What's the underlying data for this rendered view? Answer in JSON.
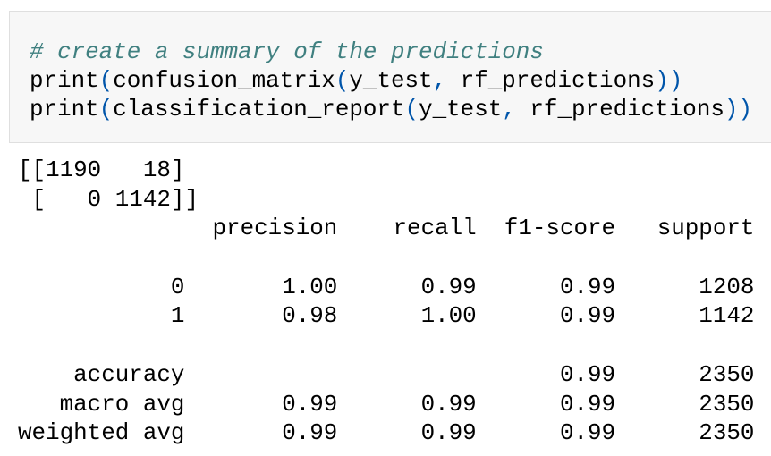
{
  "code": {
    "lines": [
      [
        {
          "text": "# create a summary of the predictions",
          "color": "#408080",
          "italic": true
        }
      ],
      [
        {
          "text": "print",
          "color": "#000000"
        },
        {
          "text": "(",
          "color": "#0055aa"
        },
        {
          "text": "confusion_matrix",
          "color": "#000000"
        },
        {
          "text": "(",
          "color": "#0055aa"
        },
        {
          "text": "y_test",
          "color": "#000000"
        },
        {
          "text": ",",
          "color": "#0055aa"
        },
        {
          "text": " rf_predictions",
          "color": "#000000"
        },
        {
          "text": "))",
          "color": "#0055aa"
        }
      ],
      [
        {
          "text": "print",
          "color": "#000000"
        },
        {
          "text": "(",
          "color": "#0055aa"
        },
        {
          "text": "classification_report",
          "color": "#000000"
        },
        {
          "text": "(",
          "color": "#0055aa"
        },
        {
          "text": "y_test",
          "color": "#000000"
        },
        {
          "text": ",",
          "color": "#0055aa"
        },
        {
          "text": " rf_predictions",
          "color": "#000000"
        },
        {
          "text": "))",
          "color": "#0055aa"
        }
      ]
    ]
  },
  "output": {
    "matrix": [
      "[[1190   18]",
      " [   0 1142]]"
    ],
    "report_header": "              precision    recall  f1-score   support",
    "report_classes": [
      "           0       1.00      0.99      0.99      1208",
      "           1       0.98      1.00      0.99      1142"
    ],
    "report_summary": [
      "    accuracy                           0.99      2350",
      "   macro avg       0.99      0.99      0.99      2350",
      "weighted avg       0.99      0.99      0.99      2350"
    ]
  }
}
